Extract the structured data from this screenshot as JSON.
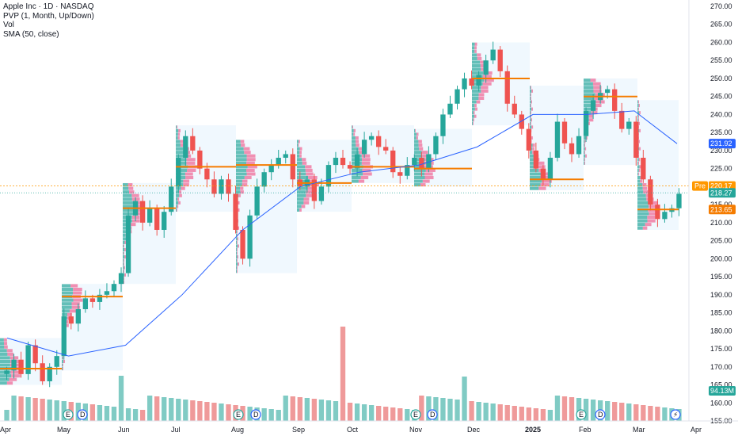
{
  "legend": {
    "symbol": "Apple Inc · 1D · NASDAQ",
    "pvp": "PVP (1, Month, Up/Down)",
    "vol": "Vol",
    "sma": "SMA (50, close)"
  },
  "colors": {
    "up": "#26a69a",
    "down": "#ef5350",
    "sma": "#2962ff",
    "poc": "#f57c00",
    "profile_up": "#26a69a",
    "profile_down": "#f06292",
    "zone": "#e3f2fd",
    "vol_up": "#80cbc4",
    "vol_down": "#ef9a9a",
    "pre": "#ff9800"
  },
  "axis": {
    "price_ticks": [
      "270.00",
      "265.00",
      "260.00",
      "255.00",
      "250.00",
      "245.00",
      "240.00",
      "235.00",
      "230.00",
      "225.00",
      "220.00",
      "215.00",
      "210.00",
      "205.00",
      "200.00",
      "195.00",
      "190.00",
      "185.00",
      "180.00",
      "175.00",
      "170.00",
      "165.00",
      "160.00",
      "155.00"
    ],
    "time_ticks": [
      "Apr",
      "May",
      "Jun",
      "Jul",
      "Aug",
      "Sep",
      "Oct",
      "Nov",
      "Dec",
      "2025",
      "Feb",
      "Mar",
      "Apr"
    ]
  },
  "labels": {
    "sma_value": "231.92",
    "pre_tag": "Pre",
    "pre_value": "220.17",
    "last_value": "218.27",
    "poc_value": "213.65",
    "volume_value": "94.13M"
  },
  "events": [
    {
      "type": "E",
      "month": "May"
    },
    {
      "type": "D",
      "month": "May"
    },
    {
      "type": "E",
      "month": "Aug"
    },
    {
      "type": "D",
      "month": "Aug"
    },
    {
      "type": "E",
      "month": "Oct/Nov"
    },
    {
      "type": "D",
      "month": "Nov"
    },
    {
      "type": "E",
      "month": "Jan/Feb"
    },
    {
      "type": "D",
      "month": "Feb"
    },
    {
      "type": "split",
      "month": "Mar"
    }
  ],
  "chart_data": {
    "type": "candlestick",
    "title": "Apple Inc · 1D · NASDAQ",
    "ylim": [
      155,
      270
    ],
    "price_axis_side": "right",
    "monthly_profiles": [
      {
        "month": "Apr",
        "low": 165,
        "high": 178,
        "poc": 169.5
      },
      {
        "month": "May",
        "low": 169,
        "high": 193,
        "poc": 189.5
      },
      {
        "month": "Jun",
        "low": 193,
        "high": 221,
        "poc": 214
      },
      {
        "month": "Jul",
        "low": 213,
        "high": 237,
        "poc": 225.5
      },
      {
        "month": "Aug",
        "low": 196,
        "high": 233,
        "poc": 226
      },
      {
        "month": "Sep",
        "low": 213,
        "high": 233,
        "poc": 221
      },
      {
        "month": "Oct",
        "low": 221,
        "high": 237,
        "poc": 225.5
      },
      {
        "month": "Nov",
        "low": 220,
        "high": 236,
        "poc": 225
      },
      {
        "month": "Dec",
        "low": 237,
        "high": 260,
        "poc": 250
      },
      {
        "month": "Jan",
        "low": 219,
        "high": 248,
        "poc": 222
      },
      {
        "month": "Feb",
        "low": 226,
        "high": 250,
        "poc": 245
      },
      {
        "month": "Mar",
        "low": 208,
        "high": 244,
        "poc": 213.65
      }
    ],
    "price_path": [
      [
        "Apr",
        169
      ],
      [
        "Apr",
        172
      ],
      [
        "Apr",
        168
      ],
      [
        "Apr",
        176
      ],
      [
        "Apr",
        171
      ],
      [
        "Apr",
        166
      ],
      [
        "Apr",
        170
      ],
      [
        "Apr",
        173
      ],
      [
        "May",
        184
      ],
      [
        "May",
        182
      ],
      [
        "May",
        186
      ],
      [
        "May",
        189
      ],
      [
        "May",
        188
      ],
      [
        "May",
        190
      ],
      [
        "May",
        191
      ],
      [
        "Jun",
        193
      ],
      [
        "Jun",
        196
      ],
      [
        "Jun",
        212
      ],
      [
        "Jun",
        216
      ],
      [
        "Jun",
        210
      ],
      [
        "Jun",
        214
      ],
      [
        "Jun",
        208
      ],
      [
        "Jun",
        213
      ],
      [
        "Jul",
        220
      ],
      [
        "Jul",
        228
      ],
      [
        "Jul",
        234
      ],
      [
        "Jul",
        230
      ],
      [
        "Jul",
        225
      ],
      [
        "Jul",
        222
      ],
      [
        "Jul",
        218
      ],
      [
        "Jul",
        222
      ],
      [
        "Aug",
        218
      ],
      [
        "Aug",
        208
      ],
      [
        "Aug",
        200
      ],
      [
        "Aug",
        212
      ],
      [
        "Aug",
        220
      ],
      [
        "Aug",
        224
      ],
      [
        "Aug",
        226
      ],
      [
        "Aug",
        228
      ],
      [
        "Sep",
        229
      ],
      [
        "Sep",
        222
      ],
      [
        "Sep",
        220
      ],
      [
        "Sep",
        222
      ],
      [
        "Sep",
        216
      ],
      [
        "Sep",
        220
      ],
      [
        "Sep",
        226
      ],
      [
        "Sep",
        228
      ],
      [
        "Oct",
        226
      ],
      [
        "Oct",
        225
      ],
      [
        "Oct",
        229
      ],
      [
        "Oct",
        233
      ],
      [
        "Oct",
        234
      ],
      [
        "Oct",
        231
      ],
      [
        "Oct",
        230
      ],
      [
        "Nov",
        224
      ],
      [
        "Nov",
        223
      ],
      [
        "Nov",
        226
      ],
      [
        "Nov",
        228
      ],
      [
        "Nov",
        225
      ],
      [
        "Nov",
        229
      ],
      [
        "Nov",
        234
      ],
      [
        "Dec",
        240
      ],
      [
        "Dec",
        243
      ],
      [
        "Dec",
        247
      ],
      [
        "Dec",
        250
      ],
      [
        "Dec",
        248
      ],
      [
        "Dec",
        251
      ],
      [
        "Dec",
        255
      ],
      [
        "Dec",
        258
      ],
      [
        "Dec",
        252
      ],
      [
        "Jan",
        243
      ],
      [
        "Jan",
        240
      ],
      [
        "Jan",
        236
      ],
      [
        "Jan",
        230
      ],
      [
        "Jan",
        225
      ],
      [
        "Jan",
        222
      ],
      [
        "Jan",
        228
      ],
      [
        "Jan",
        238
      ],
      [
        "Feb",
        232
      ],
      [
        "Feb",
        229
      ],
      [
        "Feb",
        234
      ],
      [
        "Feb",
        241
      ],
      [
        "Feb",
        244
      ],
      [
        "Feb",
        246
      ],
      [
        "Feb",
        247
      ],
      [
        "Feb",
        241
      ],
      [
        "Mar",
        236
      ],
      [
        "Mar",
        238
      ],
      [
        "Mar",
        228
      ],
      [
        "Mar",
        222
      ],
      [
        "Mar",
        215
      ],
      [
        "Mar",
        211
      ],
      [
        "Mar",
        213
      ],
      [
        "Mar",
        214
      ],
      [
        "Mar",
        218
      ]
    ],
    "sma_path": [
      [
        "Apr",
        178
      ],
      [
        "May",
        173
      ],
      [
        "Jun",
        176
      ],
      [
        "Jul",
        190
      ],
      [
        "Aug",
        208
      ],
      [
        "Sep",
        220
      ],
      [
        "Oct",
        224
      ],
      [
        "Nov",
        226
      ],
      [
        "Dec",
        231
      ],
      [
        "Jan",
        240
      ],
      [
        "Feb",
        240
      ],
      [
        "Mar",
        241
      ],
      [
        "Mar",
        231.92
      ]
    ]
  }
}
